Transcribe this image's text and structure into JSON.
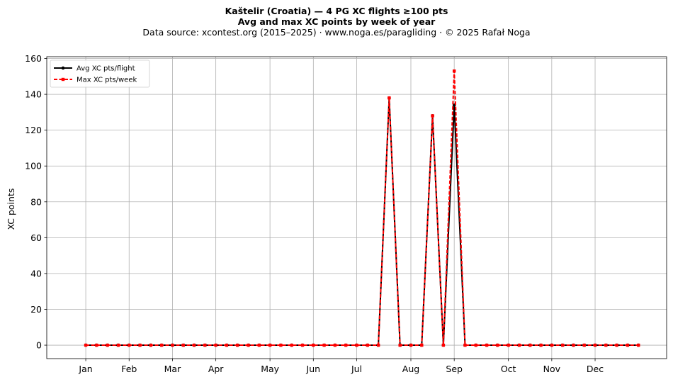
{
  "chart_data": {
    "type": "line",
    "title": "Kaštelir (Croatia)  —  4 PG XC flights ≥100 pts",
    "subtitle": "Avg and max XC points by week of year",
    "source_line": "Data source: xcontest.org (2015–2025)  ·  www.noga.es/paragliding  ·  © 2025 Rafał Noga",
    "xlabel": "",
    "ylabel": "XC points",
    "ylim": [
      -7.5,
      161
    ],
    "yticks": [
      0,
      20,
      40,
      60,
      80,
      100,
      120,
      140,
      160
    ],
    "xlim": [
      -2.6,
      54.6
    ],
    "grid": true,
    "legend_position": "upper-left",
    "month_ticks": [
      {
        "label": "Jan",
        "week": 1
      },
      {
        "label": "Feb",
        "week": 5
      },
      {
        "label": "Mar",
        "week": 9
      },
      {
        "label": "Apr",
        "week": 13
      },
      {
        "label": "May",
        "week": 18
      },
      {
        "label": "Jun",
        "week": 22
      },
      {
        "label": "Jul",
        "week": 26
      },
      {
        "label": "Aug",
        "week": 31
      },
      {
        "label": "Sep",
        "week": 35
      },
      {
        "label": "Oct",
        "week": 40
      },
      {
        "label": "Nov",
        "week": 44
      },
      {
        "label": "Dec",
        "week": 48
      }
    ],
    "x": [
      1,
      2,
      3,
      4,
      5,
      6,
      7,
      8,
      9,
      10,
      11,
      12,
      13,
      14,
      15,
      16,
      17,
      18,
      19,
      20,
      21,
      22,
      23,
      24,
      25,
      26,
      27,
      28,
      29,
      30,
      31,
      32,
      33,
      34,
      35,
      36,
      37,
      38,
      39,
      40,
      41,
      42,
      43,
      44,
      45,
      46,
      47,
      48,
      49,
      50,
      51,
      52
    ],
    "series": [
      {
        "name": "Avg XC pts/flight",
        "color": "#000000",
        "marker": "circle",
        "linestyle": "solid",
        "values": [
          0,
          0,
          0,
          0,
          0,
          0,
          0,
          0,
          0,
          0,
          0,
          0,
          0,
          0,
          0,
          0,
          0,
          0,
          0,
          0,
          0,
          0,
          0,
          0,
          0,
          0,
          0,
          0,
          138,
          0,
          0,
          0,
          128,
          0,
          134,
          0,
          0,
          0,
          0,
          0,
          0,
          0,
          0,
          0,
          0,
          0,
          0,
          0,
          0,
          0,
          0,
          0
        ]
      },
      {
        "name": "Max XC pts/week",
        "color": "#ff0000",
        "marker": "square",
        "linestyle": "dashed",
        "values": [
          0,
          0,
          0,
          0,
          0,
          0,
          0,
          0,
          0,
          0,
          0,
          0,
          0,
          0,
          0,
          0,
          0,
          0,
          0,
          0,
          0,
          0,
          0,
          0,
          0,
          0,
          0,
          0,
          138,
          0,
          0,
          0,
          128,
          0,
          153,
          0,
          0,
          0,
          0,
          0,
          0,
          0,
          0,
          0,
          0,
          0,
          0,
          0,
          0,
          0,
          0,
          0
        ]
      }
    ]
  }
}
